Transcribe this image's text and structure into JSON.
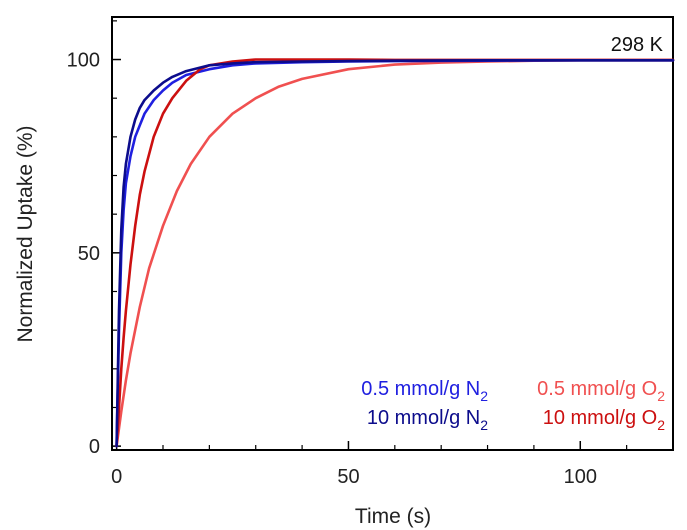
{
  "chart_data": {
    "type": "line",
    "title": "",
    "annotation": "298 K",
    "xlabel": "Time (s)",
    "ylabel": "Normalized Uptake (%)",
    "xlim": [
      -1,
      120
    ],
    "ylim": [
      -1,
      111
    ],
    "x_ticks": [
      0,
      50,
      100
    ],
    "y_ticks": [
      0,
      50,
      100
    ],
    "grid": false,
    "legend_position": "bottom-right",
    "series": [
      {
        "name": "0.5 mmol/g N2",
        "label_main": "0.5 mmol/g N",
        "label_sub": "2",
        "color": "#2020e0",
        "x": [
          0,
          0.5,
          1,
          1.5,
          2,
          3,
          4,
          5,
          6,
          8,
          10,
          12,
          15,
          20,
          25,
          30,
          40,
          50,
          60,
          80,
          100,
          120
        ],
        "y": [
          0,
          30,
          50,
          61,
          68,
          75,
          80,
          83,
          86,
          89.5,
          92,
          94,
          96,
          97.5,
          98.5,
          99,
          99.3,
          99.5,
          99.6,
          99.7,
          99.8,
          99.8
        ]
      },
      {
        "name": "10 mmol/g N2",
        "label_main": "10 mmol/g N",
        "label_sub": "2",
        "color": "#0c0c8c",
        "x": [
          0,
          0.5,
          1,
          1.5,
          2,
          3,
          4,
          5,
          6,
          8,
          10,
          12,
          15,
          20,
          25,
          30,
          40,
          50,
          60,
          80,
          100,
          120
        ],
        "y": [
          0,
          35,
          56,
          67,
          73,
          80,
          84.5,
          87.5,
          89.5,
          92,
          94,
          95.5,
          97,
          98.5,
          99,
          99.3,
          99.5,
          99.6,
          99.7,
          99.8,
          99.8,
          99.8
        ]
      },
      {
        "name": "0.5 mmol/g O2",
        "label_main": "0.5 mmol/g O",
        "label_sub": "2",
        "color": "#f05050",
        "x": [
          0,
          1,
          2,
          3,
          5,
          7,
          10,
          13,
          16,
          20,
          25,
          30,
          35,
          40,
          50,
          60,
          70,
          80,
          90,
          100,
          110,
          120
        ],
        "y": [
          0,
          9,
          17,
          24,
          36,
          46,
          57,
          66,
          73,
          80,
          86,
          90,
          93,
          95,
          97.5,
          98.7,
          99.2,
          99.5,
          99.7,
          99.8,
          99.8,
          99.8
        ]
      },
      {
        "name": "10 mmol/g O2",
        "label_main": "10 mmol/g O",
        "label_sub": "2",
        "color": "#cc1010",
        "x": [
          0,
          0.5,
          1,
          1.5,
          2,
          3,
          4,
          5,
          6,
          8,
          10,
          12,
          15,
          18,
          20,
          25,
          30,
          40,
          50,
          60,
          80,
          100,
          120
        ],
        "y": [
          0,
          10,
          20,
          28,
          35,
          47,
          57,
          65,
          71,
          80,
          86,
          90,
          94.5,
          97.5,
          98.5,
          99.5,
          100,
          100,
          100,
          99.9,
          99.9,
          99.9,
          99.9
        ]
      }
    ]
  }
}
